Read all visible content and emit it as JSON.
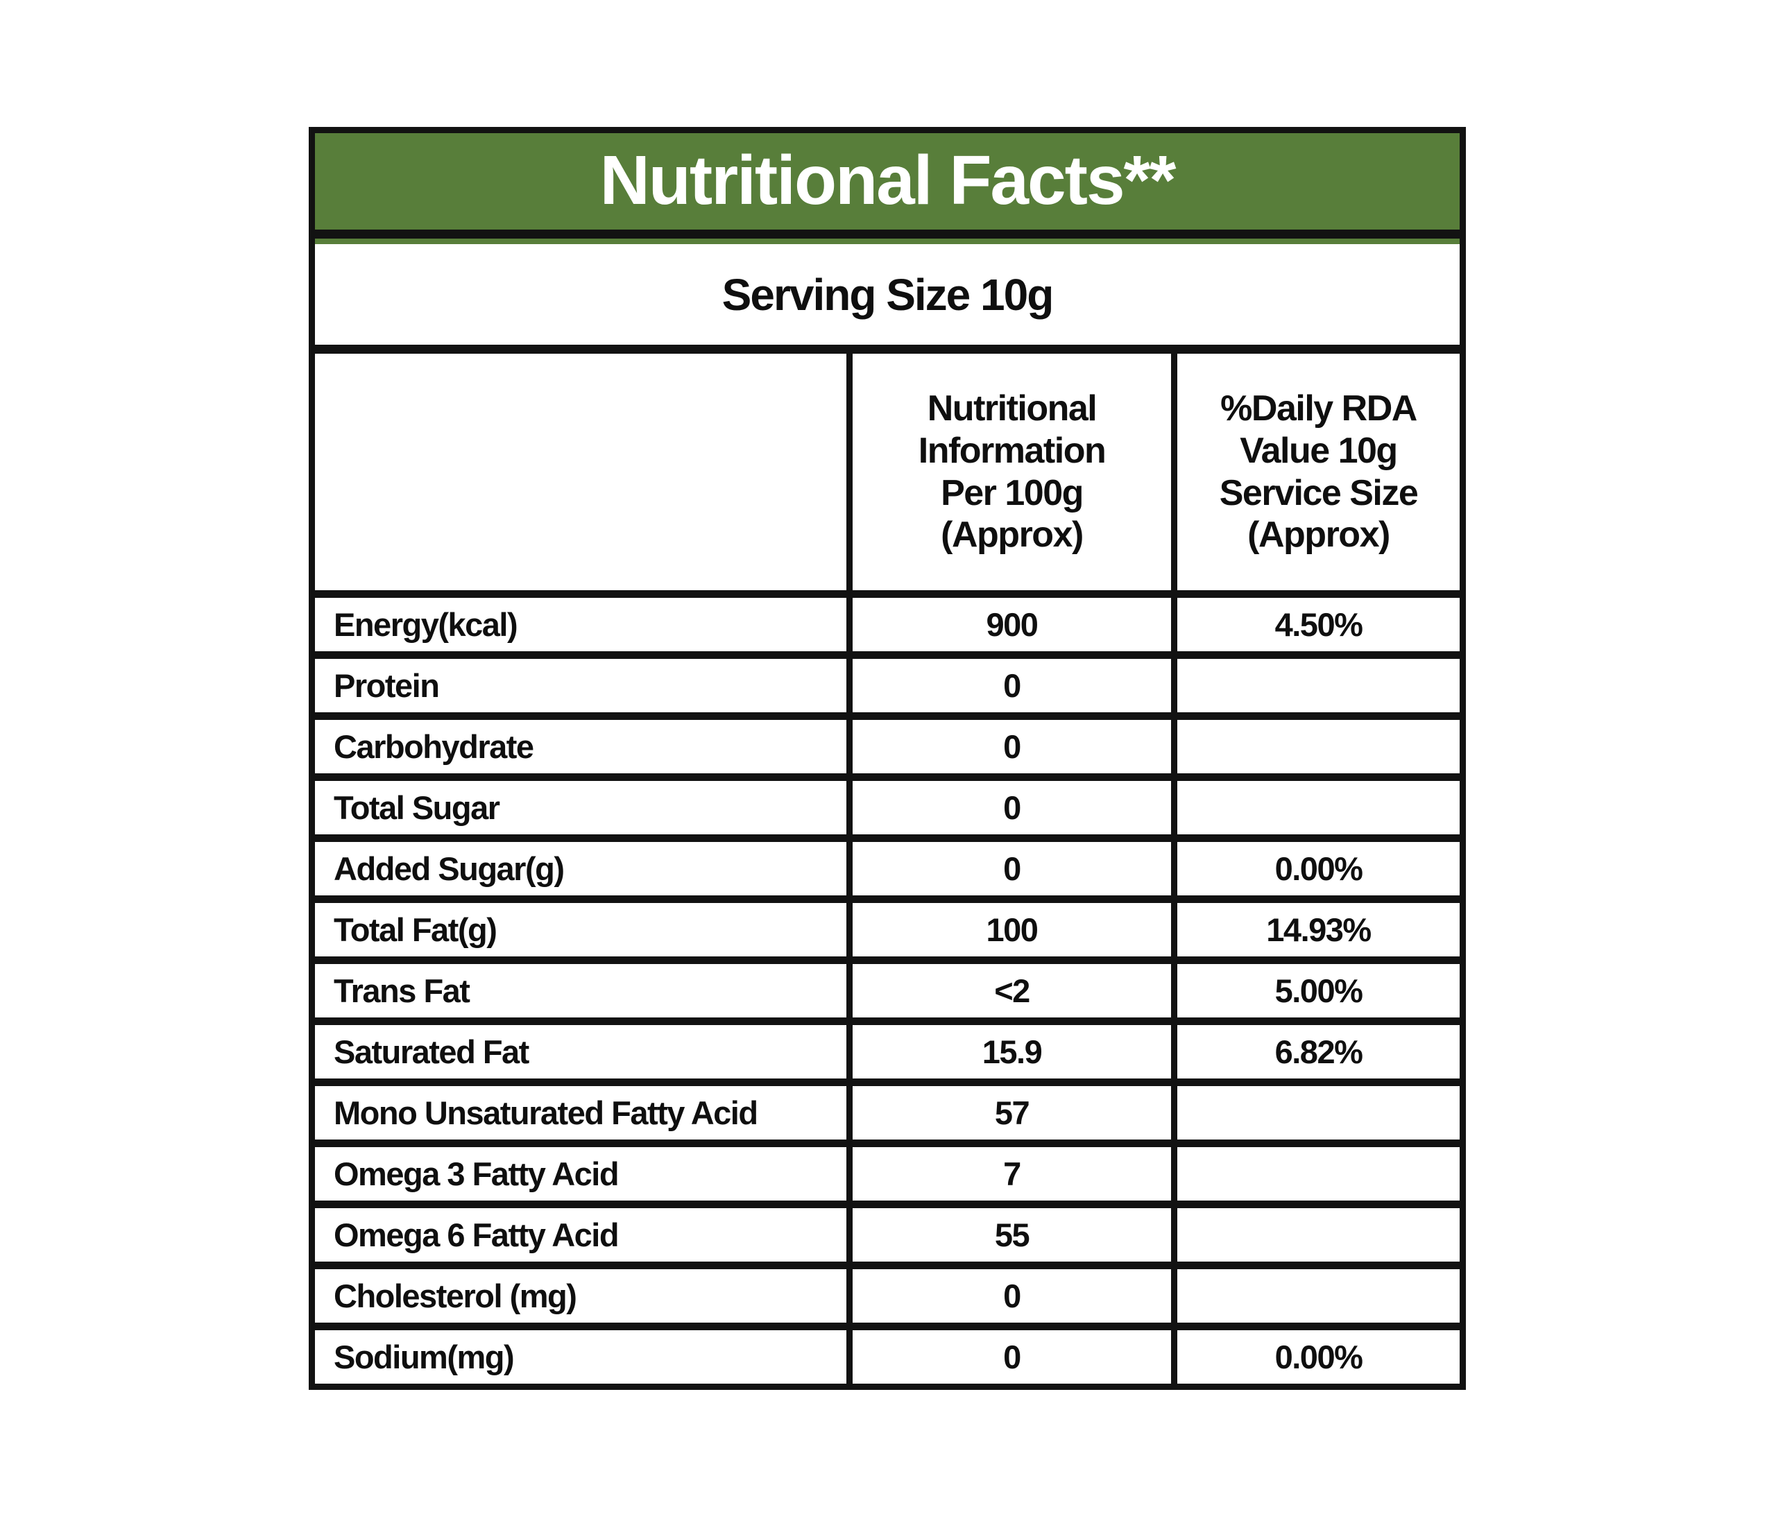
{
  "header": {
    "title": "Nutritional Facts**",
    "serving": "Serving Size 10g"
  },
  "columns": {
    "item": "",
    "per100g": "Nutritional\nInformation\nPer 100g\n(Approx)",
    "rda": "%Daily RDA\nValue 10g\nService Size\n(Approx)"
  },
  "rows": [
    {
      "label": "Energy(kcal)",
      "per100g": "900",
      "rda": "4.50%"
    },
    {
      "label": "Protein",
      "per100g": "0",
      "rda": ""
    },
    {
      "label": "Carbohydrate",
      "per100g": "0",
      "rda": ""
    },
    {
      "label": "Total Sugar",
      "per100g": "0",
      "rda": ""
    },
    {
      "label": "Added Sugar(g)",
      "per100g": "0",
      "rda": "0.00%"
    },
    {
      "label": "Total Fat(g)",
      "per100g": "100",
      "rda": "14.93%"
    },
    {
      "label": "Trans Fat",
      "per100g": "<2",
      "rda": "5.00%"
    },
    {
      "label": "Saturated Fat",
      "per100g": "15.9",
      "rda": "6.82%"
    },
    {
      "label": "Mono Unsaturated Fatty Acid",
      "per100g": "57",
      "rda": ""
    },
    {
      "label": "Omega 3 Fatty Acid",
      "per100g": "7",
      "rda": ""
    },
    {
      "label": "Omega 6 Fatty Acid",
      "per100g": "55",
      "rda": ""
    },
    {
      "label": "Cholesterol (mg)",
      "per100g": "0",
      "rda": ""
    },
    {
      "label": "Sodium(mg)",
      "per100g": "0",
      "rda": "0.00%"
    }
  ],
  "colors": {
    "header_bg": "#587e3a",
    "border": "#121212",
    "header_text": "#ffffff",
    "body_text": "#0f0f0f"
  }
}
